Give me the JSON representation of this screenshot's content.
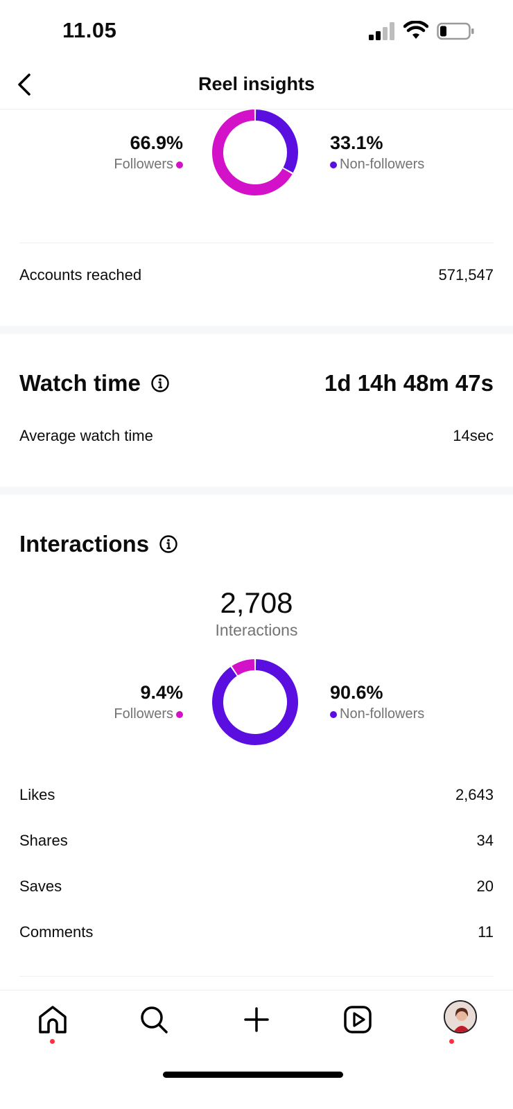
{
  "status_bar": {
    "time": "11.05"
  },
  "header": {
    "title": "Reel insights"
  },
  "reach": {
    "followers_pct": "66.9%",
    "followers_label": "Followers",
    "non_followers_pct": "33.1%",
    "non_followers_label": "Non-followers",
    "followers_fraction": 0.669,
    "accounts_reached_label": "Accounts reached",
    "accounts_reached_value": "571,547"
  },
  "watch_time": {
    "title": "Watch time",
    "total": "1d 14h 48m 47s",
    "average_label": "Average watch time",
    "average_value": "14sec"
  },
  "interactions": {
    "title": "Interactions",
    "total": "2,708",
    "total_label": "Interactions",
    "followers_pct": "9.4%",
    "followers_label": "Followers",
    "non_followers_pct": "90.6%",
    "non_followers_label": "Non-followers",
    "followers_fraction": 0.094,
    "rows": [
      {
        "label": "Likes",
        "value": "2,643"
      },
      {
        "label": "Shares",
        "value": "34"
      },
      {
        "label": "Saves",
        "value": "20"
      },
      {
        "label": "Comments",
        "value": "11"
      }
    ]
  },
  "colors": {
    "followers": "#d211c9",
    "non_followers": "#5b0ee0"
  },
  "bottom_nav": [
    "home-icon",
    "search-icon",
    "create-icon",
    "reels-icon",
    "profile-avatar"
  ]
}
